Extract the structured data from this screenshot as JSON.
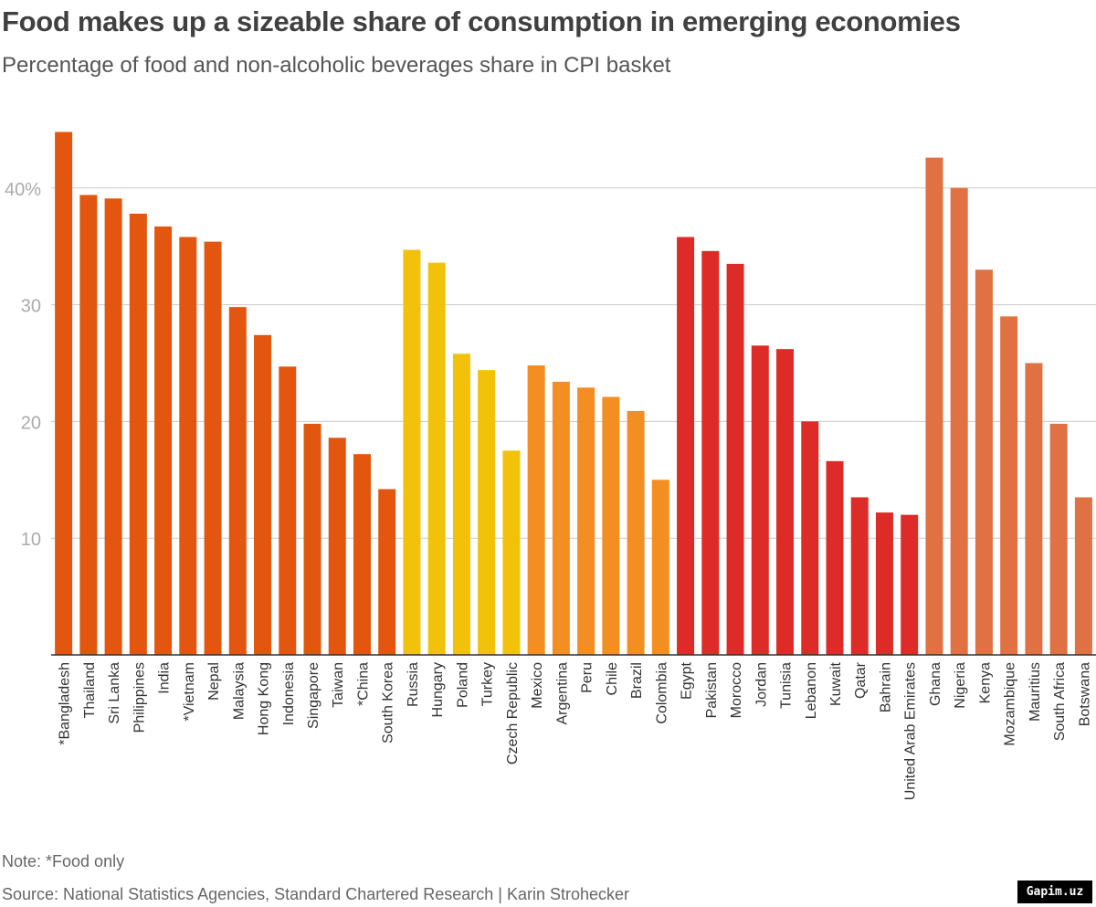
{
  "header": {
    "title": "Food makes up a sizeable share of consumption in emerging economies",
    "subtitle": "Percentage of food and non-alcoholic beverages share in CPI basket"
  },
  "footer": {
    "note": "Note: *Food only",
    "source": "Source: National Statistics Agencies, Standard Chartered Research | Karin Strohecker",
    "watermark": "Gapim.uz"
  },
  "chart_data": {
    "type": "bar",
    "title": "Food makes up a sizeable share of consumption in emerging economies",
    "subtitle": "Percentage of food and non-alcoholic beverages share in CPI basket",
    "ylim": [
      0,
      45
    ],
    "yticks": [
      10,
      20,
      30,
      40
    ],
    "ytick_labels": [
      "10",
      "20",
      "30",
      "40%"
    ],
    "grid": true,
    "legend": "none",
    "categories": [
      "*Bangladesh",
      "Thailand",
      "Sri Lanka",
      "Philippines",
      "India",
      "*Vietnam",
      "Nepal",
      "Malaysia",
      "Hong Kong",
      "Indonesia",
      "Singapore",
      "Taiwan",
      "*China",
      "South Korea",
      "Russia",
      "Hungary",
      "Poland",
      "Turkey",
      "Czech Republic",
      "Mexico",
      "Argentina",
      "Peru",
      "Chile",
      "Brazil",
      "Colombia",
      "Egypt",
      "Pakistan",
      "Morocco",
      "Jordan",
      "Tunisia",
      "Lebanon",
      "Kuwait",
      "Qatar",
      "Bahrain",
      "United Arab Emirates",
      "Ghana",
      "Nigeria",
      "Kenya",
      "Mozambique",
      "Mauritius",
      "South Africa",
      "Botswana"
    ],
    "values": [
      44.8,
      39.4,
      39.1,
      37.8,
      36.7,
      35.8,
      35.4,
      29.8,
      27.4,
      24.7,
      19.8,
      18.6,
      17.2,
      14.2,
      34.7,
      33.6,
      25.8,
      24.4,
      17.5,
      24.8,
      23.4,
      22.9,
      22.1,
      20.9,
      15.0,
      35.8,
      34.6,
      33.5,
      26.5,
      26.2,
      20.0,
      16.6,
      13.5,
      12.2,
      12.0,
      42.6,
      40.0,
      33.0,
      29.0,
      25.0,
      19.8,
      13.5
    ],
    "colors": [
      "#E2560F",
      "#E2560F",
      "#E2560F",
      "#E2560F",
      "#E2560F",
      "#E2560F",
      "#E2560F",
      "#E2560F",
      "#E2560F",
      "#E2560F",
      "#E2560F",
      "#E2560F",
      "#E2560F",
      "#E2560F",
      "#F2C10A",
      "#F2C10A",
      "#F2C10A",
      "#F2C10A",
      "#F2C10A",
      "#F28E22",
      "#F28E22",
      "#F28E22",
      "#F28E22",
      "#F28E22",
      "#F28E22",
      "#DD2C28",
      "#DD2C28",
      "#DD2C28",
      "#DD2C28",
      "#DD2C28",
      "#DD2C28",
      "#DD2C28",
      "#DD2C28",
      "#DD2C28",
      "#DD2C28",
      "#E07142",
      "#E07142",
      "#E07142",
      "#E07142",
      "#E07142",
      "#E07142",
      "#E07142"
    ]
  },
  "style": {
    "axis_color": "#333333",
    "grid_color": "#cccccc",
    "tick_label_color": "#aaaaaa"
  }
}
